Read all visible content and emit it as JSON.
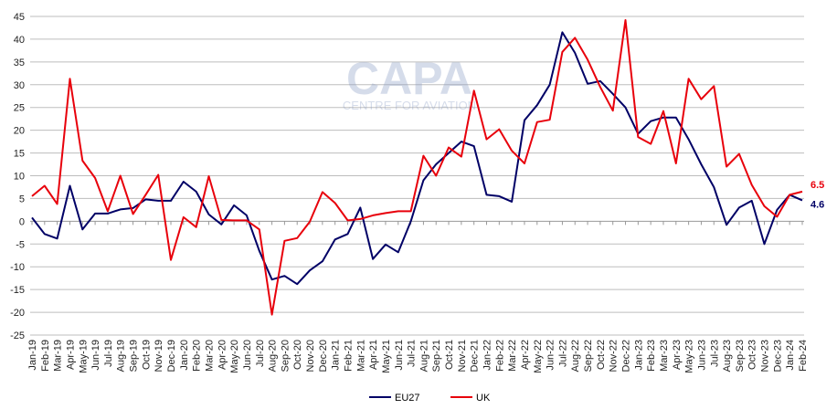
{
  "watermark": {
    "logo": "CAPA",
    "tagline": "CENTRE FOR AVIATION"
  },
  "chart_data": {
    "type": "line",
    "title": "",
    "xlabel": "",
    "ylabel": "",
    "ylim": [
      -25,
      45
    ],
    "yticks": [
      -25,
      -20,
      -15,
      -10,
      -5,
      0,
      5,
      10,
      15,
      20,
      25,
      30,
      35,
      40,
      45
    ],
    "grid": true,
    "legend": "bottom",
    "categories": [
      "Jan-19",
      "Feb-19",
      "Mar-19",
      "Apr-19",
      "May-19",
      "Jun-19",
      "Jul-19",
      "Aug-19",
      "Sep-19",
      "Oct-19",
      "Nov-19",
      "Dec-19",
      "Jan-20",
      "Feb-20",
      "Mar-20",
      "Apr-20",
      "May-20",
      "Jun-20",
      "Jul-20",
      "Aug-20",
      "Sep-20",
      "Oct-20",
      "Nov-20",
      "Dec-20",
      "Jan-21",
      "Feb-21",
      "Mar-21",
      "Apr-21",
      "May-21",
      "Jun-21",
      "Jul-21",
      "Aug-21",
      "Sep-21",
      "Oct-21",
      "Nov-21",
      "Dec-21",
      "Jan-22",
      "Feb-22",
      "Mar-22",
      "Apr-22",
      "May-22",
      "Jun-22",
      "Jul-22",
      "Aug-22",
      "Sep-22",
      "Oct-22",
      "Nov-22",
      "Dec-22",
      "Jan-23",
      "Feb-23",
      "Mar-23",
      "Apr-23",
      "May-23",
      "Jun-23",
      "Jul-23",
      "Aug-23",
      "Sep-23",
      "Oct-23",
      "Nov-23",
      "Dec-23",
      "Jan-24",
      "Feb-24"
    ],
    "series": [
      {
        "name": "EU27",
        "color": "#000066",
        "end_label": "4.6",
        "values": [
          0.8,
          -2.8,
          -3.8,
          7.8,
          -1.8,
          1.7,
          1.7,
          2.6,
          2.9,
          4.8,
          4.5,
          4.5,
          8.7,
          6.5,
          1.5,
          -0.7,
          3.5,
          1.3,
          -6.5,
          -12.8,
          -12,
          -13.8,
          -10.8,
          -8.8,
          -4,
          -2.8,
          3,
          -8.3,
          -5.1,
          -6.8,
          0,
          9,
          12.5,
          15,
          17.5,
          16.5,
          5.8,
          5.5,
          4.3,
          22.2,
          25.5,
          30,
          41.5,
          37,
          30.2,
          30.8,
          28,
          25,
          19.2,
          22,
          22.8,
          22.8,
          18,
          12.5,
          7.5,
          -0.8,
          3,
          4.5,
          -5,
          2.5,
          5.8,
          4.6
        ]
      },
      {
        "name": "UK",
        "color": "#e8000b",
        "end_label": "6.5",
        "values": [
          5.5,
          7.8,
          3.8,
          31.3,
          13.3,
          9.5,
          2.2,
          10,
          1.6,
          5.8,
          10.2,
          -8.5,
          0.9,
          -1.3,
          9.9,
          0.3,
          0.2,
          0.2,
          -1.8,
          -20.5,
          -4.3,
          -3.7,
          -0.1,
          6.4,
          4,
          0.2,
          0.5,
          1.3,
          1.8,
          2.2,
          2.2,
          14.4,
          10,
          16.2,
          14.2,
          28.7,
          18,
          20.2,
          15.5,
          12.7,
          21.8,
          22.3,
          37.2,
          40.3,
          35.5,
          29.5,
          24.3,
          44.2,
          18.5,
          17,
          24.2,
          12.7,
          31.3,
          26.8,
          29.7,
          12,
          14.8,
          8,
          3.3,
          1,
          5.8,
          6.5
        ]
      }
    ]
  }
}
